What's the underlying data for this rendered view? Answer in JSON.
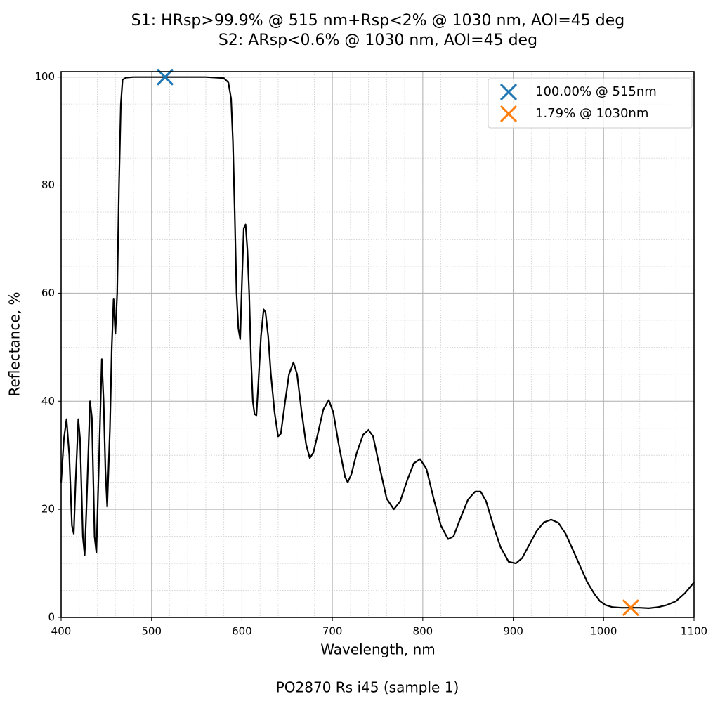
{
  "chart_data": {
    "type": "line",
    "title": "S1: HRsp>99.9% @ 515 nm+Rsp<2% @ 1030 nm, AOI=45 deg",
    "subtitle": "S2: ARsp<0.6% @ 1030 nm, AOI=45 deg",
    "x_label": "Wavelength, nm",
    "y_label": "Reflectance, %",
    "footer": "PO2870 Rs i45 (sample 1)",
    "xlim": [
      400,
      1100
    ],
    "ylim": [
      0,
      101
    ],
    "xticks": [
      400,
      500,
      600,
      700,
      800,
      900,
      1000,
      1100
    ],
    "yticks": [
      0,
      20,
      40,
      60,
      80,
      100
    ],
    "grid": true,
    "xminor_step": 20,
    "yminor_step": 5,
    "legend": "upper right",
    "line": {
      "color": "#000000",
      "x": [
        400,
        403,
        406,
        409,
        412,
        414,
        416,
        419,
        421,
        424,
        426,
        428,
        432,
        434,
        437,
        439,
        442,
        445,
        447,
        449,
        451,
        454,
        456,
        458,
        460,
        462,
        464,
        466,
        468,
        472,
        480,
        500,
        515,
        540,
        560,
        580,
        585,
        588,
        590,
        592,
        594,
        596,
        598,
        600,
        602,
        604,
        606,
        608,
        610,
        612,
        614,
        616,
        618,
        621,
        624,
        626,
        629,
        632,
        636,
        640,
        643,
        647,
        652,
        657,
        661,
        666,
        671,
        675,
        679,
        684,
        690,
        696,
        701,
        707,
        714,
        717,
        721,
        727,
        734,
        740,
        745,
        752,
        760,
        768,
        775,
        783,
        790,
        797,
        804,
        812,
        820,
        828,
        834,
        842,
        850,
        858,
        864,
        870,
        878,
        886,
        895,
        903,
        910,
        918,
        926,
        934,
        942,
        950,
        958,
        966,
        974,
        982,
        990,
        996,
        1002,
        1010,
        1020,
        1030,
        1040,
        1050,
        1060,
        1070,
        1080,
        1090,
        1100
      ],
      "values": [
        25,
        33,
        36.7,
        30,
        17,
        15.5,
        25,
        36.7,
        33,
        15,
        11.5,
        20,
        40,
        37,
        15,
        12,
        30,
        47.8,
        40,
        27,
        20.5,
        35,
        50,
        59,
        52.5,
        60,
        80,
        95,
        99.5,
        99.9,
        100,
        100,
        100,
        100,
        100,
        99.8,
        99,
        96,
        88,
        75,
        60,
        53.5,
        51.5,
        62,
        72,
        72.7,
        68,
        60,
        48,
        40,
        37.6,
        37.4,
        43,
        52,
        57,
        56.5,
        52,
        45,
        38,
        33.5,
        34,
        39,
        45,
        47.2,
        45,
        38,
        32,
        29.5,
        30.5,
        34,
        38.5,
        40.2,
        38,
        32,
        26,
        25,
        26.5,
        30.5,
        33.8,
        34.7,
        33.5,
        28,
        22,
        20,
        21.5,
        25.5,
        28.5,
        29.3,
        27.5,
        22,
        17,
        14.5,
        15,
        18.5,
        21.8,
        23.3,
        23.3,
        21.5,
        17,
        13,
        10.3,
        10,
        11,
        13.5,
        16,
        17.6,
        18.1,
        17.5,
        15.5,
        12.5,
        9.5,
        6.5,
        4.3,
        3,
        2.3,
        1.9,
        1.8,
        1.79,
        1.8,
        1.7,
        1.9,
        2.3,
        3,
        4.5,
        6.5
      ]
    },
    "markers": [
      {
        "name": "100.00% @ 515nm",
        "x": 515,
        "value": 100,
        "color": "#1f77b4"
      },
      {
        "name": "1.79% @ 1030nm",
        "x": 1030,
        "value": 1.79,
        "color": "#ff7f0e"
      }
    ]
  }
}
